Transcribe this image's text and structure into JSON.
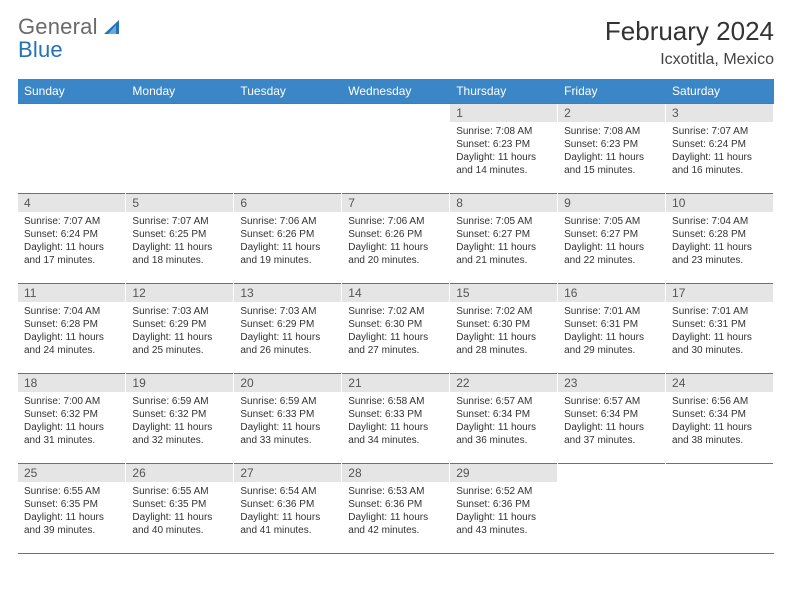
{
  "logo": {
    "word1": "General",
    "word2": "Blue",
    "word1_color": "#6a6a6a",
    "word2_color": "#2473b5",
    "sail_color": "#2473b5"
  },
  "title": "February 2024",
  "location": "Icxotitla, Mexico",
  "title_fontsize": 26,
  "location_fontsize": 16,
  "header_bg": "#3b86c6",
  "header_text_color": "#ffffff",
  "daynum_bg": "#e5e5e5",
  "border_color": "#4a7ba7",
  "dayheaders": [
    "Sunday",
    "Monday",
    "Tuesday",
    "Wednesday",
    "Thursday",
    "Friday",
    "Saturday"
  ],
  "weeks": [
    [
      null,
      null,
      null,
      null,
      {
        "n": "1",
        "sr": "7:08 AM",
        "ss": "6:23 PM",
        "dl": "11 hours and 14 minutes."
      },
      {
        "n": "2",
        "sr": "7:08 AM",
        "ss": "6:23 PM",
        "dl": "11 hours and 15 minutes."
      },
      {
        "n": "3",
        "sr": "7:07 AM",
        "ss": "6:24 PM",
        "dl": "11 hours and 16 minutes."
      }
    ],
    [
      {
        "n": "4",
        "sr": "7:07 AM",
        "ss": "6:24 PM",
        "dl": "11 hours and 17 minutes."
      },
      {
        "n": "5",
        "sr": "7:07 AM",
        "ss": "6:25 PM",
        "dl": "11 hours and 18 minutes."
      },
      {
        "n": "6",
        "sr": "7:06 AM",
        "ss": "6:26 PM",
        "dl": "11 hours and 19 minutes."
      },
      {
        "n": "7",
        "sr": "7:06 AM",
        "ss": "6:26 PM",
        "dl": "11 hours and 20 minutes."
      },
      {
        "n": "8",
        "sr": "7:05 AM",
        "ss": "6:27 PM",
        "dl": "11 hours and 21 minutes."
      },
      {
        "n": "9",
        "sr": "7:05 AM",
        "ss": "6:27 PM",
        "dl": "11 hours and 22 minutes."
      },
      {
        "n": "10",
        "sr": "7:04 AM",
        "ss": "6:28 PM",
        "dl": "11 hours and 23 minutes."
      }
    ],
    [
      {
        "n": "11",
        "sr": "7:04 AM",
        "ss": "6:28 PM",
        "dl": "11 hours and 24 minutes."
      },
      {
        "n": "12",
        "sr": "7:03 AM",
        "ss": "6:29 PM",
        "dl": "11 hours and 25 minutes."
      },
      {
        "n": "13",
        "sr": "7:03 AM",
        "ss": "6:29 PM",
        "dl": "11 hours and 26 minutes."
      },
      {
        "n": "14",
        "sr": "7:02 AM",
        "ss": "6:30 PM",
        "dl": "11 hours and 27 minutes."
      },
      {
        "n": "15",
        "sr": "7:02 AM",
        "ss": "6:30 PM",
        "dl": "11 hours and 28 minutes."
      },
      {
        "n": "16",
        "sr": "7:01 AM",
        "ss": "6:31 PM",
        "dl": "11 hours and 29 minutes."
      },
      {
        "n": "17",
        "sr": "7:01 AM",
        "ss": "6:31 PM",
        "dl": "11 hours and 30 minutes."
      }
    ],
    [
      {
        "n": "18",
        "sr": "7:00 AM",
        "ss": "6:32 PM",
        "dl": "11 hours and 31 minutes."
      },
      {
        "n": "19",
        "sr": "6:59 AM",
        "ss": "6:32 PM",
        "dl": "11 hours and 32 minutes."
      },
      {
        "n": "20",
        "sr": "6:59 AM",
        "ss": "6:33 PM",
        "dl": "11 hours and 33 minutes."
      },
      {
        "n": "21",
        "sr": "6:58 AM",
        "ss": "6:33 PM",
        "dl": "11 hours and 34 minutes."
      },
      {
        "n": "22",
        "sr": "6:57 AM",
        "ss": "6:34 PM",
        "dl": "11 hours and 36 minutes."
      },
      {
        "n": "23",
        "sr": "6:57 AM",
        "ss": "6:34 PM",
        "dl": "11 hours and 37 minutes."
      },
      {
        "n": "24",
        "sr": "6:56 AM",
        "ss": "6:34 PM",
        "dl": "11 hours and 38 minutes."
      }
    ],
    [
      {
        "n": "25",
        "sr": "6:55 AM",
        "ss": "6:35 PM",
        "dl": "11 hours and 39 minutes."
      },
      {
        "n": "26",
        "sr": "6:55 AM",
        "ss": "6:35 PM",
        "dl": "11 hours and 40 minutes."
      },
      {
        "n": "27",
        "sr": "6:54 AM",
        "ss": "6:36 PM",
        "dl": "11 hours and 41 minutes."
      },
      {
        "n": "28",
        "sr": "6:53 AM",
        "ss": "6:36 PM",
        "dl": "11 hours and 42 minutes."
      },
      {
        "n": "29",
        "sr": "6:52 AM",
        "ss": "6:36 PM",
        "dl": "11 hours and 43 minutes."
      },
      null,
      null
    ]
  ],
  "labels": {
    "sunrise": "Sunrise:",
    "sunset": "Sunset:",
    "daylight": "Daylight:"
  },
  "cell_fontsize": 10,
  "dayheader_fontsize": 12
}
